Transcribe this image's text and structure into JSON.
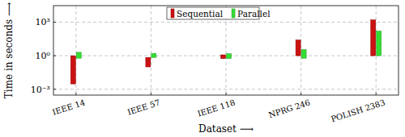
{
  "chart_data": {
    "type": "floating_bar",
    "x_label": "Dataset ⟶",
    "y_label": "Time in seconds ⟶",
    "categories": [
      "IEEE 14",
      "IEEE 57",
      "IEEE 118",
      "NPRG 246",
      "POLISH 2383"
    ],
    "series": [
      {
        "name": "Sequential",
        "color": "#cc1111",
        "values": [
          [
            0.003,
            1
          ],
          [
            0.1,
            0.7
          ],
          [
            0.55,
            1.2
          ],
          [
            1,
            25
          ],
          [
            1,
            1600
          ]
        ]
      },
      {
        "name": "Parallel",
        "color": "#33dd33",
        "values": [
          [
            0.6,
            2
          ],
          [
            0.7,
            1.6
          ],
          [
            0.55,
            1.5
          ],
          [
            0.6,
            3.5
          ],
          [
            1,
            160
          ]
        ]
      }
    ],
    "ylim": [
      0.0003,
      30000
    ],
    "yticks": [
      {
        "value": 0.001,
        "label": "10⁻³"
      },
      {
        "value": 1,
        "label": "10⁰"
      },
      {
        "value": 1000,
        "label": "10³"
      }
    ],
    "log": "y",
    "grid": true,
    "legend": "top"
  }
}
